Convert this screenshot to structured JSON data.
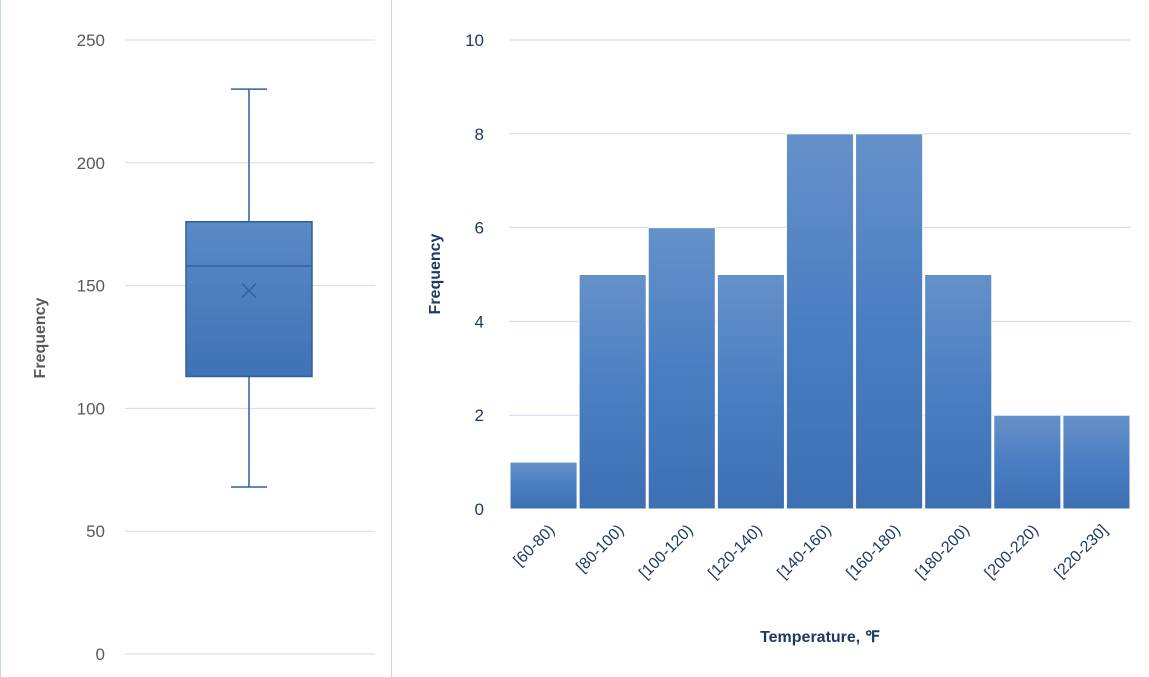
{
  "chart_data": [
    {
      "type": "box",
      "ylabel": "Frequency",
      "ylim": [
        0,
        250
      ],
      "yticks": [
        0,
        50,
        100,
        150,
        200,
        250
      ],
      "box": {
        "min": 68,
        "q1": 113,
        "median": 158,
        "mean": 148,
        "q3": 176,
        "max": 230
      },
      "grid": true,
      "color": "#4a7ebb"
    },
    {
      "type": "bar",
      "xlabel": "Temperature, ℉",
      "ylabel": "Frequency",
      "ylim": [
        0,
        10
      ],
      "yticks": [
        0,
        2,
        4,
        6,
        8,
        10
      ],
      "categories": [
        "[60-80)",
        "[80-100)",
        "[100-120)",
        "[120-140)",
        "[140-160)",
        "[160-180)",
        "[180-200)",
        "[200-220)",
        "[220-230]"
      ],
      "values": [
        1,
        5,
        6,
        5,
        8,
        8,
        5,
        2,
        2
      ],
      "grid": true,
      "color": "#4a7ebb"
    }
  ]
}
